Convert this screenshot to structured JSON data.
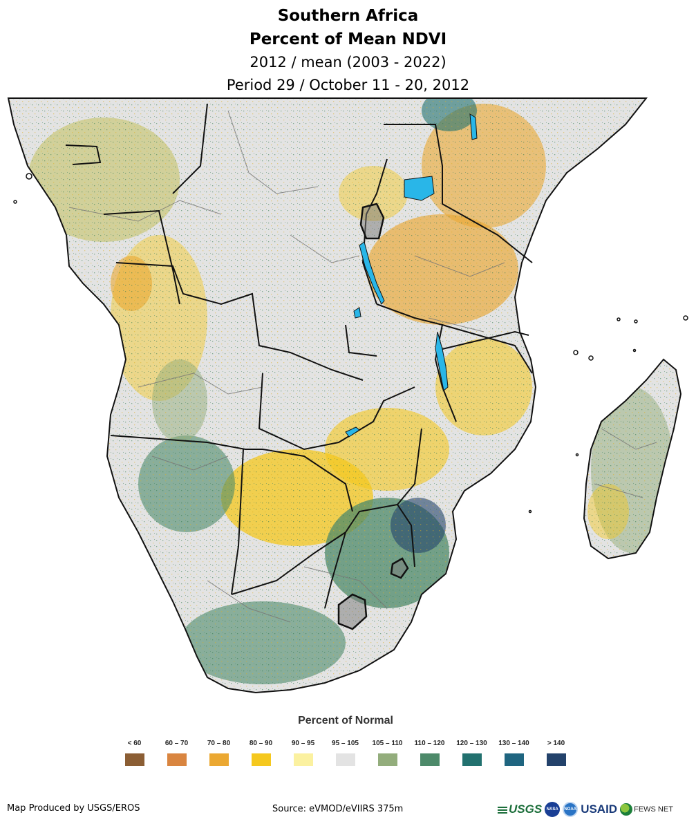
{
  "header": {
    "line1": "Southern Africa",
    "line2": "Percent of Mean NDVI",
    "line3": "2012 / mean (2003 - 2022)",
    "line4": "Period 29 / October 11 - 20, 2012"
  },
  "legend": {
    "title": "Percent of Normal",
    "items": [
      {
        "label": "< 60",
        "color": "#8b5e34"
      },
      {
        "label": "60 – 70",
        "color": "#d98540"
      },
      {
        "label": "70 – 80",
        "color": "#eba832"
      },
      {
        "label": "80 – 90",
        "color": "#f5c81e"
      },
      {
        "label": "90 – 95",
        "color": "#fbf1a0"
      },
      {
        "label": "95 – 105",
        "color": "#e3e3e3"
      },
      {
        "label": "105 – 110",
        "color": "#93ad7c"
      },
      {
        "label": "110 – 120",
        "color": "#4d8a6a"
      },
      {
        "label": "120 – 130",
        "color": "#22716f"
      },
      {
        "label": "130 – 140",
        "color": "#1f6580"
      },
      {
        "label": "> 140",
        "color": "#23426b"
      }
    ]
  },
  "footer": {
    "producer": "Map Produced by USGS/EROS",
    "source": "Source: eVMOD/eVIIRS 375m"
  },
  "logos": {
    "usgs": "USGS",
    "nasa": "NASA",
    "noaa": "NOAA",
    "usaid": "USAID",
    "fews": "FEWS NET"
  },
  "colors": {
    "water": "#29b6e8",
    "border": "#111111",
    "admin_border": "#777777"
  }
}
